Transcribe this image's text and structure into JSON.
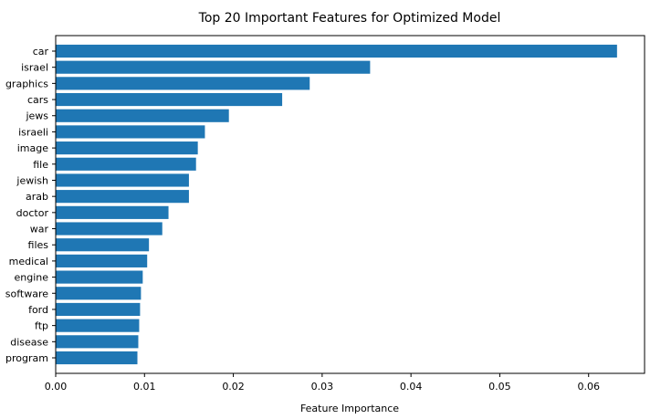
{
  "chart_data": {
    "type": "bar",
    "orientation": "horizontal",
    "title": "Top 20 Important Features for Optimized Model",
    "xlabel": "Feature Importance",
    "ylabel": "",
    "categories": [
      "car",
      "israel",
      "graphics",
      "cars",
      "jews",
      "israeli",
      "image",
      "file",
      "jewish",
      "arab",
      "doctor",
      "war",
      "files",
      "medical",
      "engine",
      "software",
      "ford",
      "ftp",
      "disease",
      "program"
    ],
    "values": [
      0.0632,
      0.0354,
      0.0286,
      0.0255,
      0.0195,
      0.0168,
      0.016,
      0.0158,
      0.015,
      0.015,
      0.0127,
      0.012,
      0.0105,
      0.0103,
      0.0098,
      0.0096,
      0.0095,
      0.0094,
      0.0093,
      0.0092
    ],
    "xlim": [
      0,
      0.0663
    ],
    "xticks": [
      "0.00",
      "0.01",
      "0.02",
      "0.03",
      "0.04",
      "0.05",
      "0.06"
    ],
    "bar_color": "#1f77b4",
    "grid": false,
    "legend": "none"
  }
}
